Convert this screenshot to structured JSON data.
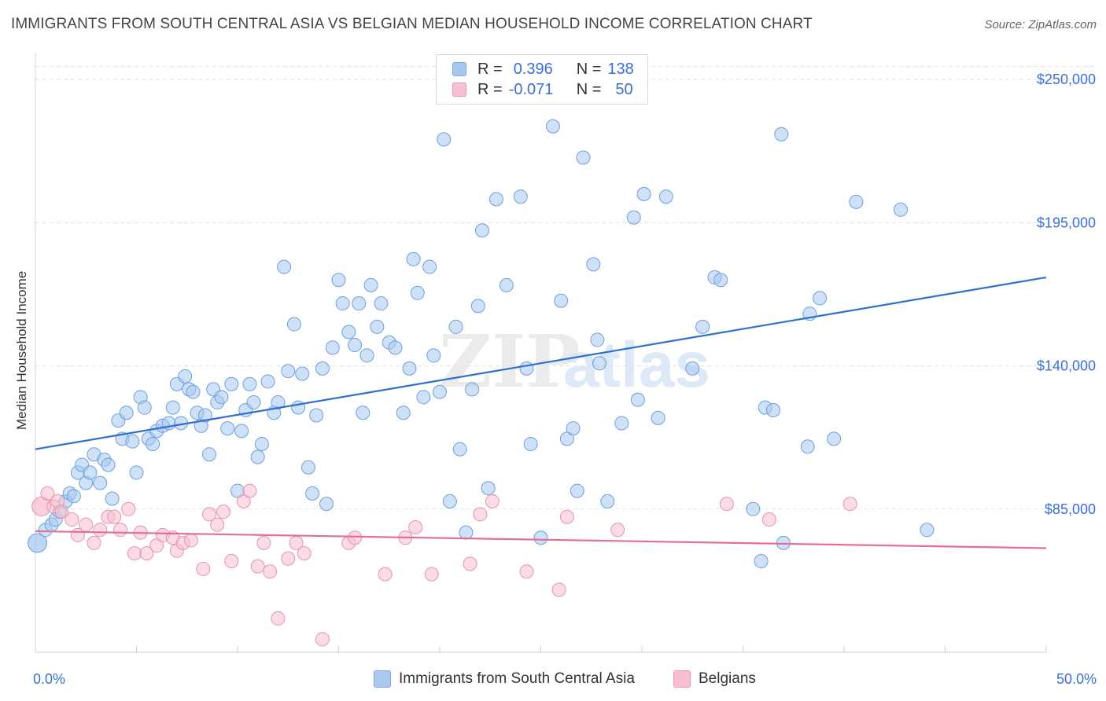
{
  "header": {
    "title": "IMMIGRANTS FROM SOUTH CENTRAL ASIA VS BELGIAN MEDIAN HOUSEHOLD INCOME CORRELATION CHART",
    "source": "Source: ZipAtlas.com"
  },
  "legend": {
    "rows": [
      {
        "r_label": "R =",
        "r_value": "0.396",
        "n_label": "N =",
        "n_value": "138",
        "color": "#a8c8f0",
        "border": "#7aa6e0"
      },
      {
        "r_label": "R =",
        "r_value": "-0.071",
        "n_label": "N =",
        "n_value": "50",
        "color": "#f7bfd0",
        "border": "#e996b0"
      }
    ]
  },
  "watermark": {
    "part1": "ZIP",
    "part2": "atlas"
  },
  "chart_data": {
    "type": "scatter",
    "ylabel": "Median Household Income",
    "xlabel": "",
    "xlim": [
      0,
      50
    ],
    "ylim": [
      30000,
      260000
    ],
    "x_tick_labels": [
      "0.0%",
      "50.0%"
    ],
    "y_ticks": [
      {
        "value": 85000,
        "label": "$85,000"
      },
      {
        "value": 140000,
        "label": "$140,000"
      },
      {
        "value": 195000,
        "label": "$195,000"
      },
      {
        "value": 250000,
        "label": "$250,000"
      }
    ],
    "grid": "horizontal dashed",
    "series": [
      {
        "name": "Immigrants from South Central Asia",
        "color": "#a8c8f0",
        "stroke": "#6e9fde",
        "trend": {
          "x": [
            0,
            50
          ],
          "y": [
            108000,
            174000
          ],
          "color": "#2f6fd0"
        },
        "points": [
          [
            0.1,
            72000
          ],
          [
            0.5,
            77000
          ],
          [
            0.8,
            79000
          ],
          [
            1.0,
            81000
          ],
          [
            1.2,
            84000
          ],
          [
            1.5,
            88000
          ],
          [
            1.7,
            91000
          ],
          [
            1.9,
            90000
          ],
          [
            2.1,
            99000
          ],
          [
            2.3,
            102000
          ],
          [
            2.5,
            95000
          ],
          [
            2.7,
            99000
          ],
          [
            2.9,
            106000
          ],
          [
            3.2,
            95000
          ],
          [
            3.4,
            104000
          ],
          [
            3.6,
            102000
          ],
          [
            3.8,
            89000
          ],
          [
            4.1,
            119000
          ],
          [
            4.3,
            112000
          ],
          [
            4.5,
            122000
          ],
          [
            4.8,
            111000
          ],
          [
            5.0,
            99000
          ],
          [
            5.2,
            128000
          ],
          [
            5.4,
            124000
          ],
          [
            5.6,
            112000
          ],
          [
            5.8,
            110000
          ],
          [
            6.0,
            115000
          ],
          [
            6.3,
            117000
          ],
          [
            6.6,
            118000
          ],
          [
            6.8,
            124000
          ],
          [
            7.0,
            133000
          ],
          [
            7.2,
            118000
          ],
          [
            7.4,
            136000
          ],
          [
            7.6,
            131000
          ],
          [
            7.8,
            130000
          ],
          [
            8.0,
            122000
          ],
          [
            8.2,
            117000
          ],
          [
            8.4,
            121000
          ],
          [
            8.6,
            106000
          ],
          [
            8.8,
            131000
          ],
          [
            9.0,
            126000
          ],
          [
            9.2,
            128000
          ],
          [
            9.5,
            116000
          ],
          [
            9.7,
            133000
          ],
          [
            10.0,
            92000
          ],
          [
            10.2,
            115000
          ],
          [
            10.4,
            123000
          ],
          [
            10.6,
            133000
          ],
          [
            10.8,
            126000
          ],
          [
            11.0,
            105000
          ],
          [
            11.2,
            110000
          ],
          [
            11.5,
            134000
          ],
          [
            11.8,
            122000
          ],
          [
            12.0,
            126000
          ],
          [
            12.3,
            178000
          ],
          [
            12.5,
            138000
          ],
          [
            12.8,
            156000
          ],
          [
            13.0,
            124000
          ],
          [
            13.2,
            137000
          ],
          [
            13.5,
            101000
          ],
          [
            13.7,
            91000
          ],
          [
            13.9,
            121000
          ],
          [
            14.2,
            139000
          ],
          [
            14.4,
            87000
          ],
          [
            14.7,
            147000
          ],
          [
            15.0,
            173000
          ],
          [
            15.2,
            164000
          ],
          [
            15.5,
            153000
          ],
          [
            15.8,
            148000
          ],
          [
            16.0,
            164000
          ],
          [
            16.2,
            122000
          ],
          [
            16.4,
            144000
          ],
          [
            16.6,
            171000
          ],
          [
            16.9,
            155000
          ],
          [
            17.1,
            164000
          ],
          [
            17.5,
            149000
          ],
          [
            17.8,
            147000
          ],
          [
            18.2,
            122000
          ],
          [
            18.5,
            139000
          ],
          [
            18.7,
            181000
          ],
          [
            18.9,
            168000
          ],
          [
            19.2,
            128000
          ],
          [
            19.5,
            178000
          ],
          [
            19.7,
            144000
          ],
          [
            20.0,
            130000
          ],
          [
            20.2,
            227000
          ],
          [
            20.5,
            88000
          ],
          [
            20.8,
            155000
          ],
          [
            21.0,
            108000
          ],
          [
            21.3,
            76000
          ],
          [
            21.6,
            131000
          ],
          [
            21.9,
            163000
          ],
          [
            22.1,
            192000
          ],
          [
            22.4,
            93000
          ],
          [
            22.8,
            204000
          ],
          [
            23.3,
            171000
          ],
          [
            24.0,
            205000
          ],
          [
            24.3,
            139000
          ],
          [
            24.5,
            110000
          ],
          [
            25.0,
            74000
          ],
          [
            25.6,
            232000
          ],
          [
            26.0,
            165000
          ],
          [
            26.3,
            112000
          ],
          [
            26.6,
            116000
          ],
          [
            26.8,
            92000
          ],
          [
            27.1,
            220000
          ],
          [
            27.6,
            179000
          ],
          [
            27.8,
            150000
          ],
          [
            27.9,
            141000
          ],
          [
            28.3,
            88000
          ],
          [
            29.0,
            118000
          ],
          [
            29.6,
            197000
          ],
          [
            29.8,
            127000
          ],
          [
            30.1,
            206000
          ],
          [
            30.8,
            120000
          ],
          [
            31.2,
            205000
          ],
          [
            32.5,
            139000
          ],
          [
            33.0,
            155000
          ],
          [
            33.6,
            174000
          ],
          [
            33.9,
            173000
          ],
          [
            35.5,
            85000
          ],
          [
            35.9,
            65000
          ],
          [
            36.1,
            124000
          ],
          [
            36.5,
            123000
          ],
          [
            36.9,
            229000
          ],
          [
            37.0,
            72000
          ],
          [
            38.2,
            109000
          ],
          [
            38.3,
            160000
          ],
          [
            38.8,
            166000
          ],
          [
            39.5,
            112000
          ],
          [
            40.6,
            203000
          ],
          [
            42.8,
            200000
          ],
          [
            44.1,
            77000
          ]
        ]
      },
      {
        "name": "Belgians",
        "color": "#f7bfd0",
        "stroke": "#e693ad",
        "trend": {
          "x": [
            0,
            50
          ],
          "y": [
            76500,
            70000
          ],
          "color": "#e26f98"
        },
        "points": [
          [
            0.3,
            86000
          ],
          [
            0.6,
            91000
          ],
          [
            0.9,
            86000
          ],
          [
            1.1,
            88000
          ],
          [
            1.3,
            84000
          ],
          [
            1.8,
            81000
          ],
          [
            2.1,
            75000
          ],
          [
            2.5,
            79000
          ],
          [
            2.9,
            72000
          ],
          [
            3.2,
            77000
          ],
          [
            3.6,
            82000
          ],
          [
            3.9,
            82000
          ],
          [
            4.2,
            77000
          ],
          [
            4.6,
            85000
          ],
          [
            4.9,
            68000
          ],
          [
            5.2,
            76000
          ],
          [
            5.5,
            68000
          ],
          [
            6.0,
            71000
          ],
          [
            6.3,
            75000
          ],
          [
            6.8,
            74000
          ],
          [
            7.0,
            69000
          ],
          [
            7.3,
            72000
          ],
          [
            7.7,
            73000
          ],
          [
            8.3,
            62000
          ],
          [
            8.6,
            83000
          ],
          [
            9.0,
            79000
          ],
          [
            9.3,
            84000
          ],
          [
            9.7,
            65000
          ],
          [
            10.3,
            88000
          ],
          [
            10.6,
            92000
          ],
          [
            11.0,
            63000
          ],
          [
            11.3,
            72000
          ],
          [
            11.6,
            61000
          ],
          [
            12.0,
            43000
          ],
          [
            12.5,
            66000
          ],
          [
            12.9,
            72000
          ],
          [
            13.3,
            68000
          ],
          [
            14.2,
            35000
          ],
          [
            15.5,
            72000
          ],
          [
            15.8,
            74000
          ],
          [
            17.3,
            60000
          ],
          [
            18.3,
            74000
          ],
          [
            18.8,
            78000
          ],
          [
            19.6,
            60000
          ],
          [
            21.5,
            64000
          ],
          [
            22.0,
            83000
          ],
          [
            22.6,
            88000
          ],
          [
            24.3,
            61000
          ],
          [
            25.9,
            54000
          ],
          [
            26.3,
            82000
          ],
          [
            28.8,
            77000
          ],
          [
            34.2,
            87000
          ],
          [
            36.3,
            81000
          ],
          [
            40.3,
            87000
          ]
        ]
      }
    ]
  }
}
